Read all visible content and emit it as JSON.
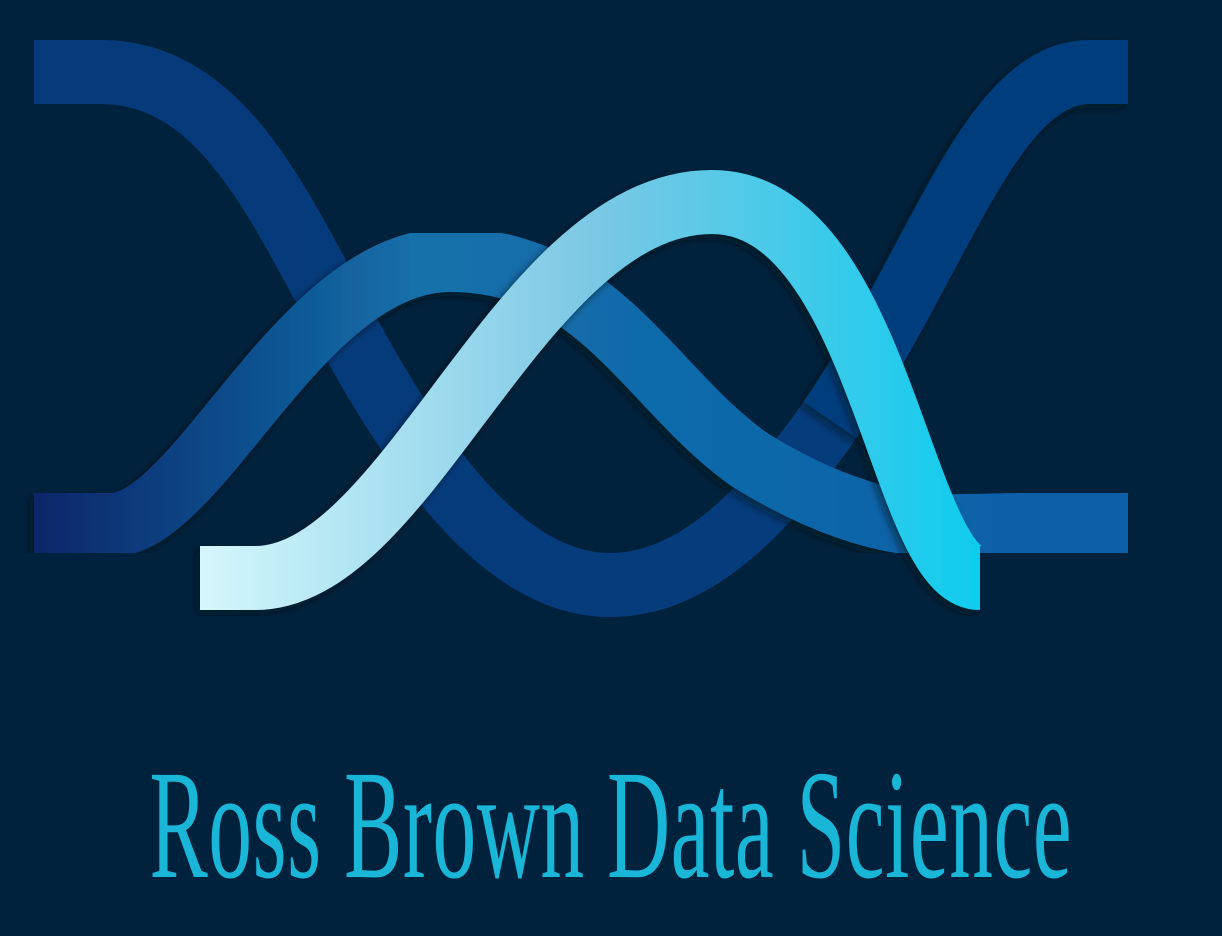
{
  "brand": {
    "name": "Ross Brown Data Science",
    "logo_icon": "intertwined-bell-curves-icon"
  },
  "colors": {
    "background": "#01223d",
    "wordmark": "#1ab6d8",
    "strand_dark": "#033e7c",
    "strand_mid_start": "#0a3e86",
    "strand_mid_end": "#3f97d2",
    "strand_light_start": "#d2f6fb",
    "strand_light_end": "#0fccee"
  }
}
